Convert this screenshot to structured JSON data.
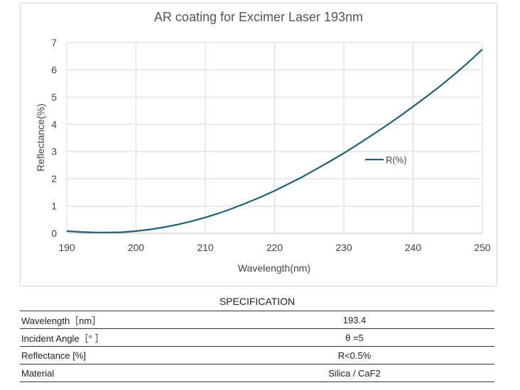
{
  "chart_data": {
    "type": "line",
    "title": "AR coating for Excimer Laser 193nm",
    "xlabel": "Wavelength(nm)",
    "ylabel": "Reflectance(%)",
    "xlim": [
      190,
      250
    ],
    "ylim": [
      0,
      7
    ],
    "xticks": [
      "190",
      "200",
      "210",
      "220",
      "230",
      "240",
      "250"
    ],
    "yticks": [
      "0",
      "1",
      "2",
      "3",
      "4",
      "5",
      "6",
      "7"
    ],
    "grid": "vertical and horizontal",
    "legend": "right-middle",
    "series": [
      {
        "name": "R(%)",
        "color": "#1f5f7a",
        "x": [
          190,
          192,
          194,
          196,
          198,
          200,
          202,
          204,
          206,
          208,
          210,
          212,
          214,
          216,
          218,
          220,
          222,
          224,
          226,
          228,
          230,
          232,
          234,
          236,
          238,
          240,
          242,
          244,
          246,
          248,
          250
        ],
        "y": [
          0.08,
          0.05,
          0.03,
          0.03,
          0.04,
          0.08,
          0.14,
          0.22,
          0.32,
          0.44,
          0.58,
          0.74,
          0.92,
          1.12,
          1.33,
          1.56,
          1.81,
          2.07,
          2.35,
          2.64,
          2.94,
          3.26,
          3.59,
          3.93,
          4.28,
          4.65,
          5.03,
          5.42,
          5.84,
          6.28,
          6.75
        ]
      }
    ]
  },
  "spec": {
    "title": "SPECIFICATION",
    "rows": [
      {
        "label": "Wavelength［nm］",
        "value": "193.4"
      },
      {
        "label": "Incident Angle［°  ］",
        "value": "θ =5"
      },
      {
        "label": "Reflectance [%]",
        "value": "R<0.5%"
      },
      {
        "label": "Material",
        "value": "Silica / CaF2"
      }
    ]
  }
}
